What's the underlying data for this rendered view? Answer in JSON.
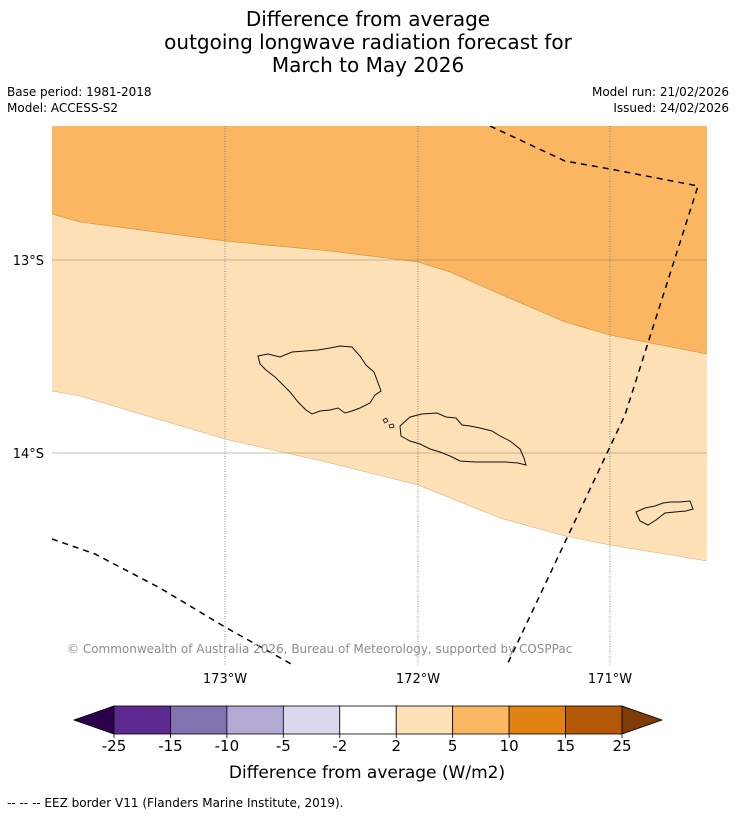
{
  "title": {
    "line1": "Difference from average",
    "line2": "outgoing longwave radiation forecast for",
    "line3": "March to May 2026"
  },
  "meta": {
    "base_period": "Base period: 1981-2018",
    "model": "Model: ACCESS-S2",
    "model_run": "Model run: 21/02/2026",
    "issued": "Issued: 24/02/2026"
  },
  "map": {
    "lat_labels": [
      "13°S",
      "14°S"
    ],
    "lon_labels": [
      "173°W",
      "172°W",
      "171°W"
    ],
    "copyright": "© Commonwealth of Australia 2026, Bureau of Meteorology, supported by COSPPac",
    "region_colors": {
      "high": "#fbb662",
      "mid": "#fde0b5",
      "low": "#ffffff"
    }
  },
  "colorbar": {
    "title": "Difference from average (W/m2)",
    "ticks": [
      "-25",
      "-15",
      "-10",
      "-5",
      "-2",
      "2",
      "5",
      "10",
      "15",
      "25"
    ],
    "colors": [
      "#2d004b",
      "#5d288f",
      "#8272b0",
      "#b2a9d4",
      "#d8d9ec",
      "#ffffff",
      "#fde0b5",
      "#fbb662",
      "#e08214",
      "#b35806",
      "#7f3b08"
    ]
  },
  "footer": {
    "legend": "--  --  -- EEZ border V11 (Flanders Marine Institute, 2019)."
  }
}
